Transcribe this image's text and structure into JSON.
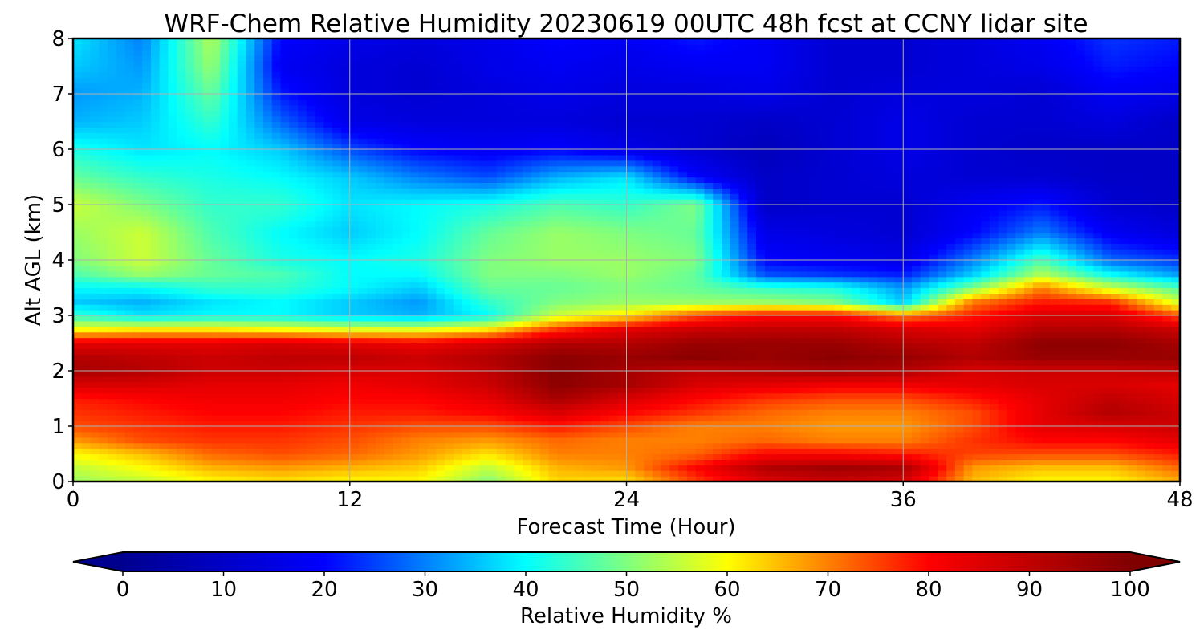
{
  "chart_data": {
    "type": "heatmap",
    "title": "WRF-Chem Relative Humidity 20230619 00UTC 48h fcst at CCNY lidar site",
    "xlabel": "Forecast Time (Hour)",
    "ylabel": "Alt AGL (km)",
    "xlim": [
      0,
      48
    ],
    "ylim": [
      0,
      8
    ],
    "x_ticks": [
      "0",
      "12",
      "24",
      "36",
      "48"
    ],
    "y_ticks": [
      "0",
      "1",
      "2",
      "3",
      "4",
      "5",
      "6",
      "7",
      "8"
    ],
    "grid": true,
    "colorbar": {
      "label": "Relative Humidity %",
      "ticks": [
        "0",
        "10",
        "20",
        "30",
        "40",
        "50",
        "60",
        "70",
        "80",
        "90",
        "100"
      ],
      "range": [
        0,
        100
      ],
      "colormap": "jet",
      "extend": "both",
      "placement": "bottom",
      "colors": [
        "#00008f",
        "#0000ff",
        "#00ffff",
        "#ffff00",
        "#ff0000",
        "#800000"
      ]
    },
    "x_hours": [
      0,
      3,
      6,
      9,
      12,
      15,
      18,
      21,
      24,
      27,
      30,
      33,
      36,
      39,
      42,
      45,
      48
    ],
    "altitudes_km": [
      0,
      0.25,
      0.5,
      0.75,
      1,
      1.25,
      1.5,
      1.75,
      2,
      2.25,
      2.5,
      2.75,
      3,
      3.25,
      3.5,
      3.75,
      4,
      4.5,
      5,
      5.5,
      6,
      6.5,
      7,
      7.5,
      8
    ],
    "rh_percent": [
      [
        52,
        55,
        60,
        62,
        60,
        60,
        50,
        63,
        62,
        75,
        85,
        88,
        86,
        65,
        60,
        60,
        66
      ],
      [
        55,
        60,
        66,
        68,
        66,
        64,
        55,
        66,
        68,
        80,
        92,
        95,
        93,
        68,
        65,
        65,
        72
      ],
      [
        60,
        65,
        72,
        74,
        72,
        68,
        62,
        70,
        70,
        72,
        80,
        80,
        78,
        75,
        74,
        74,
        78
      ],
      [
        68,
        74,
        76,
        76,
        74,
        70,
        68,
        72,
        70,
        70,
        72,
        70,
        70,
        76,
        80,
        80,
        84
      ],
      [
        74,
        76,
        78,
        78,
        76,
        74,
        74,
        78,
        74,
        70,
        70,
        68,
        68,
        74,
        84,
        86,
        88
      ],
      [
        76,
        78,
        80,
        80,
        78,
        78,
        80,
        86,
        80,
        76,
        72,
        70,
        70,
        74,
        84,
        92,
        88
      ],
      [
        78,
        80,
        82,
        82,
        80,
        80,
        84,
        94,
        86,
        80,
        76,
        74,
        74,
        78,
        84,
        90,
        86
      ],
      [
        86,
        86,
        84,
        84,
        82,
        84,
        88,
        98,
        94,
        86,
        84,
        82,
        82,
        84,
        86,
        86,
        84
      ],
      [
        94,
        92,
        88,
        88,
        86,
        86,
        90,
        99,
        94,
        90,
        92,
        94,
        92,
        86,
        88,
        88,
        90
      ],
      [
        92,
        90,
        88,
        90,
        90,
        88,
        92,
        98,
        96,
        98,
        96,
        98,
        96,
        92,
        96,
        96,
        96
      ],
      [
        84,
        84,
        84,
        86,
        84,
        82,
        86,
        92,
        92,
        96,
        96,
        96,
        92,
        90,
        98,
        98,
        94
      ],
      [
        60,
        62,
        62,
        60,
        58,
        58,
        62,
        76,
        84,
        88,
        90,
        90,
        86,
        84,
        92,
        92,
        88
      ],
      [
        44,
        38,
        40,
        40,
        36,
        34,
        40,
        56,
        62,
        74,
        80,
        80,
        70,
        78,
        86,
        86,
        74
      ],
      [
        36,
        34,
        38,
        40,
        36,
        32,
        44,
        50,
        52,
        52,
        52,
        50,
        36,
        70,
        78,
        76,
        56
      ],
      [
        40,
        40,
        44,
        44,
        40,
        36,
        48,
        48,
        50,
        48,
        44,
        42,
        32,
        50,
        70,
        56,
        46
      ],
      [
        46,
        52,
        48,
        46,
        40,
        40,
        50,
        50,
        52,
        48,
        26,
        24,
        22,
        36,
        54,
        40,
        32
      ],
      [
        50,
        56,
        48,
        42,
        40,
        42,
        50,
        52,
        52,
        50,
        20,
        18,
        16,
        30,
        46,
        28,
        24
      ],
      [
        52,
        56,
        46,
        40,
        36,
        40,
        48,
        52,
        50,
        48,
        16,
        14,
        12,
        20,
        30,
        18,
        14
      ],
      [
        56,
        50,
        44,
        44,
        38,
        40,
        42,
        46,
        44,
        50,
        10,
        12,
        12,
        18,
        22,
        12,
        10
      ],
      [
        48,
        44,
        42,
        40,
        36,
        30,
        26,
        34,
        38,
        20,
        10,
        12,
        14,
        12,
        12,
        10,
        10
      ],
      [
        42,
        38,
        40,
        36,
        26,
        20,
        18,
        20,
        16,
        12,
        8,
        12,
        16,
        12,
        10,
        10,
        10
      ],
      [
        34,
        36,
        44,
        28,
        16,
        14,
        14,
        14,
        12,
        12,
        10,
        12,
        16,
        12,
        12,
        14,
        10
      ],
      [
        32,
        34,
        48,
        22,
        14,
        12,
        14,
        16,
        14,
        14,
        16,
        12,
        14,
        14,
        12,
        18,
        16
      ],
      [
        36,
        32,
        52,
        18,
        14,
        12,
        16,
        18,
        16,
        18,
        18,
        12,
        12,
        14,
        16,
        22,
        20
      ],
      [
        38,
        30,
        54,
        20,
        16,
        14,
        16,
        20,
        18,
        22,
        18,
        12,
        12,
        14,
        18,
        24,
        22
      ]
    ]
  }
}
